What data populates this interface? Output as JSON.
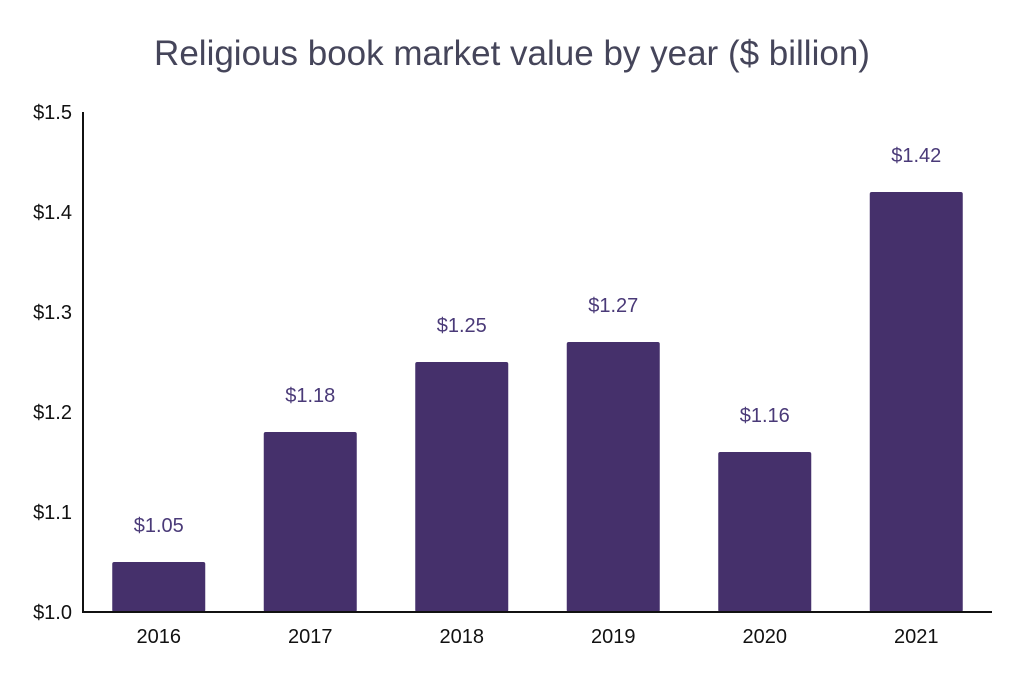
{
  "chart_data": {
    "type": "bar",
    "title": "Religious book market value by year ($ billion)",
    "xlabel": "",
    "ylabel": "",
    "categories": [
      "2016",
      "2017",
      "2018",
      "2019",
      "2020",
      "2021"
    ],
    "values": [
      1.05,
      1.18,
      1.25,
      1.27,
      1.16,
      1.42
    ],
    "data_labels": [
      "$1.05",
      "$1.18",
      "$1.25",
      "$1.27",
      "$1.16",
      "$1.42"
    ],
    "ylim": [
      1.0,
      1.5
    ],
    "yticks": [
      1.0,
      1.1,
      1.2,
      1.3,
      1.4,
      1.5
    ],
    "ytick_labels": [
      "$1.0",
      "$1.1",
      "$1.2",
      "$1.3",
      "$1.4",
      "$1.5"
    ],
    "grid": false,
    "legend": "none",
    "colors": {
      "bar": "#45306b",
      "data_label": "#4a3a78",
      "title": "#45455a",
      "axis": "#111111"
    }
  }
}
